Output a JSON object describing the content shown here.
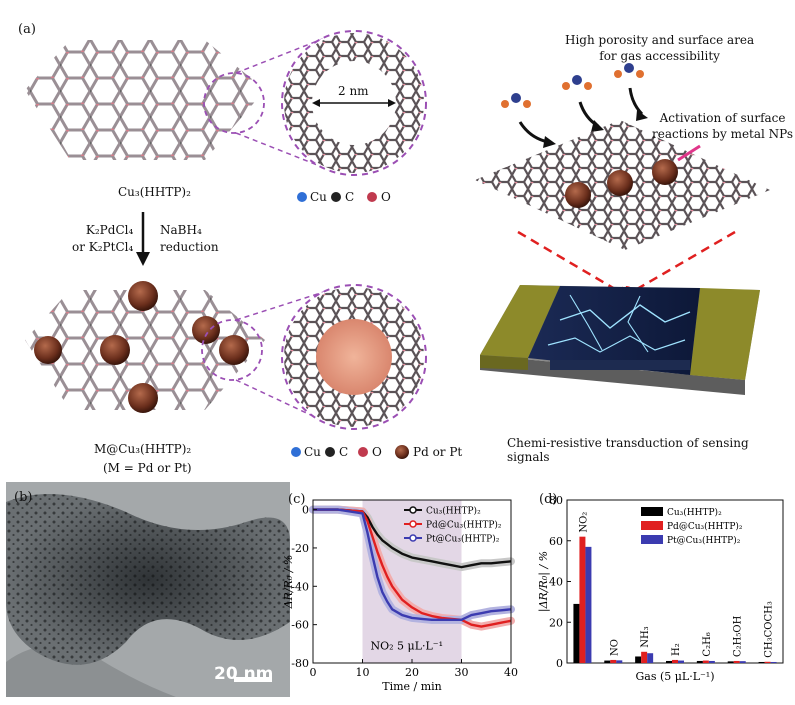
{
  "panel_a": {
    "letter": "(a)",
    "mof_label": "Cu₃(HHTP)₂",
    "reagent_left": "K₂PdCl₄\nor K₂PtCl₄",
    "reagent_right": "NaBH₄\nreduction",
    "pore_size": "2 nm",
    "legend_top": [
      "Cu",
      "C",
      "O"
    ],
    "legend_bottom": [
      "Cu",
      "C",
      "O",
      "Pd or Pt"
    ],
    "composite_label": "M@Cu₃(HHTP)₂",
    "composite_note": "(M = Pd or Pt)",
    "porosity_text": "High porosity and surface area\nfor gas accessibility",
    "activation_text": "Activation of surface\nreactions by metal NPs",
    "transduction_text": "Chemi-resistive transduction of sensing signals"
  },
  "panel_b": {
    "letter": "(b)",
    "scalebar": "20 nm"
  },
  "panel_c": {
    "letter": "(c)",
    "annotation": "NO₂ 5 μL·L⁻¹",
    "chart_data": {
      "type": "line",
      "xlabel": "Time / min",
      "ylabel": "ΔR/R₀ / %",
      "xlim": [
        0,
        40
      ],
      "ylim": [
        -80,
        5
      ],
      "xticks": [
        0,
        10,
        20,
        30,
        40
      ],
      "yticks": [
        0,
        -20,
        -40,
        -60,
        -80
      ],
      "exposure_window": [
        10,
        30
      ],
      "series": [
        {
          "name": "Cu₃(HHTP)₂",
          "color": "#111111",
          "band": "#c8c8c8",
          "x": [
            0,
            5,
            10,
            11,
            12,
            13,
            14,
            15,
            16,
            18,
            20,
            22,
            24,
            26,
            28,
            30,
            32,
            34,
            36,
            38,
            40
          ],
          "y": [
            0,
            0,
            -1,
            -4,
            -9,
            -13,
            -16,
            -18,
            -20,
            -23,
            -25,
            -26,
            -27,
            -28,
            -29,
            -30,
            -29,
            -28,
            -28,
            -27.5,
            -27
          ]
        },
        {
          "name": "Pd@Cu₃(HHTP)₂",
          "color": "#e02020",
          "band": "#f2aeae",
          "x": [
            0,
            5,
            10,
            11,
            12,
            13,
            14,
            15,
            16,
            18,
            20,
            22,
            24,
            26,
            28,
            30,
            32,
            34,
            36,
            38,
            40
          ],
          "y": [
            0,
            0,
            -1,
            -6,
            -14,
            -22,
            -29,
            -35,
            -40,
            -47,
            -51,
            -54,
            -55.5,
            -56.5,
            -57,
            -57.5,
            -60,
            -61,
            -60,
            -59,
            -58
          ]
        },
        {
          "name": "Pt@Cu₃(HHTP)₂",
          "color": "#3b3bb0",
          "band": "#b3b3e0",
          "x": [
            0,
            5,
            10,
            11,
            12,
            13,
            14,
            15,
            16,
            18,
            20,
            22,
            24,
            26,
            28,
            30,
            32,
            34,
            36,
            38,
            40
          ],
          "y": [
            0,
            0,
            -2,
            -12,
            -24,
            -35,
            -43,
            -48,
            -52,
            -55,
            -56.5,
            -57,
            -57.5,
            -57.5,
            -57.5,
            -57.5,
            -55,
            -54,
            -53,
            -52.5,
            -52
          ]
        }
      ]
    }
  },
  "panel_d": {
    "letter": "(d)",
    "chart_data": {
      "type": "bar",
      "xlabel": "Gas (5 μL·L⁻¹)",
      "ylabel": "|ΔR/R₀| / %",
      "ylim": [
        0,
        80
      ],
      "yticks": [
        0,
        20,
        40,
        60,
        80
      ],
      "categories": [
        "NO₂",
        "NO",
        "NH₃",
        "H₂",
        "C₂H₆",
        "C₂H₅OH",
        "CH₃COCH₃"
      ],
      "series": [
        {
          "name": "Cu₃(HHTP)₂",
          "color": "#000000",
          "values": [
            29,
            1.2,
            3.2,
            1,
            1,
            0.8,
            0.5
          ]
        },
        {
          "name": "Pd@Cu₃(HHTP)₂",
          "color": "#e02020",
          "values": [
            62,
            1.5,
            5.5,
            1.5,
            1.2,
            1,
            0.6
          ]
        },
        {
          "name": "Pt@Cu₃(HHTP)₂",
          "color": "#3b3bb0",
          "values": [
            57,
            1.3,
            4.8,
            1.2,
            1,
            0.9,
            0.5
          ]
        }
      ]
    }
  }
}
